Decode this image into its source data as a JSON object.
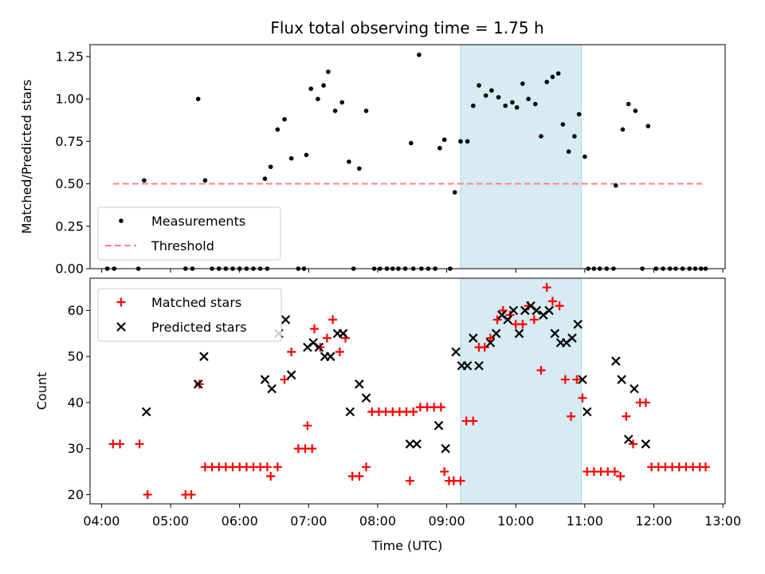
{
  "figure": {
    "title": "Flux total observing time = 1.75 h",
    "xlabel": "Time (UTC)"
  },
  "colors": {
    "measurement": "#000000",
    "threshold": "#ff8080",
    "highlight_fill": "#add8e6",
    "matched": "#ff0000",
    "predicted": "#000000"
  },
  "chart_data": [
    {
      "type": "scatter",
      "ylabel": "Matched/Predicted stars",
      "xlim": [
        "03:50",
        "13:02"
      ],
      "ylim": [
        0,
        1.32
      ],
      "yticks": [
        0,
        0.25,
        0.5,
        0.75,
        1.0,
        1.25
      ],
      "ytick_labels": [
        "0.00",
        "0.25",
        "0.50",
        "0.75",
        "1.00",
        "1.25"
      ],
      "highlight": {
        "x0": "09:12",
        "x1": "10:57"
      },
      "legend": {
        "position": "lower-left",
        "entries": [
          "Measurements",
          "Threshold"
        ]
      },
      "threshold": {
        "name": "Threshold",
        "y": 0.5,
        "x_range": [
          "04:10",
          "12:42"
        ]
      },
      "series": [
        {
          "name": "Measurements",
          "marker": "dot",
          "points": [
            [
              "04:05",
              0
            ],
            [
              "04:11",
              0
            ],
            [
              "04:32",
              0
            ],
            [
              "04:37",
              0.52
            ],
            [
              "05:13",
              0
            ],
            [
              "05:19",
              0
            ],
            [
              "05:24",
              1.0
            ],
            [
              "05:30",
              0.52
            ],
            [
              "05:36",
              0
            ],
            [
              "05:42",
              0
            ],
            [
              "05:48",
              0
            ],
            [
              "05:54",
              0
            ],
            [
              "06:00",
              0
            ],
            [
              "06:06",
              0
            ],
            [
              "06:12",
              0
            ],
            [
              "06:18",
              0
            ],
            [
              "06:24",
              0
            ],
            [
              "06:22",
              0.53
            ],
            [
              "06:27",
              0.6
            ],
            [
              "06:33",
              0.82
            ],
            [
              "06:39",
              0.88
            ],
            [
              "06:45",
              0.65
            ],
            [
              "06:51",
              0
            ],
            [
              "06:56",
              0
            ],
            [
              "06:58",
              0.67
            ],
            [
              "07:02",
              1.06
            ],
            [
              "07:08",
              1.0
            ],
            [
              "07:13",
              1.08
            ],
            [
              "07:17",
              1.16
            ],
            [
              "07:23",
              0.93
            ],
            [
              "07:29",
              0.98
            ],
            [
              "07:35",
              0.63
            ],
            [
              "07:39",
              0
            ],
            [
              "07:44",
              0.59
            ],
            [
              "07:50",
              0.93
            ],
            [
              "07:57",
              0
            ],
            [
              "08:02",
              0
            ],
            [
              "08:08",
              0
            ],
            [
              "08:13",
              0
            ],
            [
              "08:18",
              0
            ],
            [
              "08:24",
              0
            ],
            [
              "08:31",
              0
            ],
            [
              "08:38",
              0
            ],
            [
              "08:44",
              0
            ],
            [
              "08:50",
              0
            ],
            [
              "08:29",
              0.74
            ],
            [
              "08:36",
              1.26
            ],
            [
              "08:54",
              0.71
            ],
            [
              "08:58",
              0.76
            ],
            [
              "09:03",
              0
            ],
            [
              "09:07",
              0.45
            ],
            [
              "09:12",
              0.75
            ],
            [
              "09:18",
              0.75
            ],
            [
              "09:23",
              0.96
            ],
            [
              "09:28",
              1.08
            ],
            [
              "09:34",
              1.02
            ],
            [
              "09:39",
              1.05
            ],
            [
              "09:45",
              1.01
            ],
            [
              "09:51",
              0.96
            ],
            [
              "09:57",
              0.98
            ],
            [
              "10:01",
              0.95
            ],
            [
              "10:06",
              1.09
            ],
            [
              "10:11",
              1.0
            ],
            [
              "10:17",
              0.97
            ],
            [
              "10:22",
              0.78
            ],
            [
              "10:27",
              1.1
            ],
            [
              "10:32",
              1.13
            ],
            [
              "10:37",
              1.15
            ],
            [
              "10:41",
              0.85
            ],
            [
              "10:46",
              0.69
            ],
            [
              "10:51",
              0.78
            ],
            [
              "10:55",
              0.91
            ],
            [
              "11:00",
              0.66
            ],
            [
              "11:03",
              0
            ],
            [
              "11:08",
              0
            ],
            [
              "11:13",
              0
            ],
            [
              "11:19",
              0
            ],
            [
              "11:25",
              0
            ],
            [
              "11:27",
              0.49
            ],
            [
              "11:33",
              0.82
            ],
            [
              "11:38",
              0.97
            ],
            [
              "11:44",
              0.93
            ],
            [
              "11:50",
              0
            ],
            [
              "11:55",
              0.84
            ],
            [
              "12:02",
              0
            ],
            [
              "12:08",
              0
            ],
            [
              "12:14",
              0
            ],
            [
              "12:19",
              0
            ],
            [
              "12:25",
              0
            ],
            [
              "12:31",
              0
            ],
            [
              "12:36",
              0
            ],
            [
              "12:41",
              0
            ],
            [
              "12:45",
              0
            ]
          ]
        }
      ]
    },
    {
      "type": "scatter",
      "ylabel": "Count",
      "xlim": [
        "03:50",
        "13:02"
      ],
      "ylim": [
        18,
        67
      ],
      "yticks": [
        20,
        30,
        40,
        50,
        60
      ],
      "ytick_labels": [
        "20",
        "30",
        "40",
        "50",
        "60"
      ],
      "xticks": [
        "04:00",
        "05:00",
        "06:00",
        "07:00",
        "08:00",
        "09:00",
        "10:00",
        "11:00",
        "12:00",
        "13:00"
      ],
      "highlight": {
        "x0": "09:12",
        "x1": "10:57"
      },
      "legend": {
        "position": "upper-left",
        "entries": [
          "Matched stars",
          "Predicted stars"
        ]
      },
      "series": [
        {
          "name": "Matched stars",
          "marker": "plus",
          "points": [
            [
              "04:10",
              31
            ],
            [
              "04:16",
              31
            ],
            [
              "04:33",
              31
            ],
            [
              "04:40",
              20
            ],
            [
              "05:13",
              20
            ],
            [
              "05:18",
              20
            ],
            [
              "05:25",
              44
            ],
            [
              "05:30",
              26
            ],
            [
              "05:36",
              26
            ],
            [
              "05:42",
              26
            ],
            [
              "05:48",
              26
            ],
            [
              "05:54",
              26
            ],
            [
              "06:00",
              26
            ],
            [
              "06:06",
              26
            ],
            [
              "06:12",
              26
            ],
            [
              "06:18",
              26
            ],
            [
              "06:24",
              26
            ],
            [
              "06:27",
              24
            ],
            [
              "06:33",
              26
            ],
            [
              "06:39",
              45
            ],
            [
              "06:45",
              51
            ],
            [
              "06:51",
              30
            ],
            [
              "06:57",
              30
            ],
            [
              "06:59",
              35
            ],
            [
              "07:03",
              30
            ],
            [
              "07:05",
              56
            ],
            [
              "07:10",
              52
            ],
            [
              "07:16",
              54
            ],
            [
              "07:21",
              58
            ],
            [
              "07:27",
              51
            ],
            [
              "07:32",
              54
            ],
            [
              "07:38",
              24
            ],
            [
              "07:44",
              24
            ],
            [
              "07:50",
              26
            ],
            [
              "07:55",
              38
            ],
            [
              "08:01",
              38
            ],
            [
              "08:07",
              38
            ],
            [
              "08:13",
              38
            ],
            [
              "08:19",
              38
            ],
            [
              "08:25",
              38
            ],
            [
              "08:31",
              38
            ],
            [
              "08:28",
              23
            ],
            [
              "08:37",
              39
            ],
            [
              "08:43",
              39
            ],
            [
              "08:49",
              39
            ],
            [
              "08:55",
              39
            ],
            [
              "08:58",
              25
            ],
            [
              "09:02",
              23
            ],
            [
              "09:06",
              23
            ],
            [
              "09:12",
              23
            ],
            [
              "09:17",
              36
            ],
            [
              "09:23",
              36
            ],
            [
              "09:28",
              52
            ],
            [
              "09:33",
              52
            ],
            [
              "09:38",
              54
            ],
            [
              "09:44",
              58
            ],
            [
              "09:49",
              60
            ],
            [
              "09:55",
              59
            ],
            [
              "10:00",
              57
            ],
            [
              "10:06",
              57
            ],
            [
              "10:11",
              61
            ],
            [
              "10:16",
              58
            ],
            [
              "10:22",
              47
            ],
            [
              "10:27",
              65
            ],
            [
              "10:32",
              62
            ],
            [
              "10:38",
              61
            ],
            [
              "10:43",
              45
            ],
            [
              "10:48",
              37
            ],
            [
              "10:53",
              45
            ],
            [
              "10:58",
              41
            ],
            [
              "11:02",
              25
            ],
            [
              "11:08",
              25
            ],
            [
              "11:14",
              25
            ],
            [
              "11:20",
              25
            ],
            [
              "11:26",
              25
            ],
            [
              "11:31",
              24
            ],
            [
              "11:36",
              37
            ],
            [
              "11:42",
              31
            ],
            [
              "11:48",
              40
            ],
            [
              "11:53",
              40
            ],
            [
              "11:58",
              26
            ],
            [
              "12:04",
              26
            ],
            [
              "12:10",
              26
            ],
            [
              "12:16",
              26
            ],
            [
              "12:22",
              26
            ],
            [
              "12:28",
              26
            ],
            [
              "12:34",
              26
            ],
            [
              "12:40",
              26
            ],
            [
              "12:45",
              26
            ]
          ]
        },
        {
          "name": "Predicted stars",
          "marker": "x",
          "points": [
            [
              "04:39",
              38
            ],
            [
              "05:24",
              44
            ],
            [
              "05:29",
              50
            ],
            [
              "06:22",
              45
            ],
            [
              "06:28",
              43
            ],
            [
              "06:34",
              55
            ],
            [
              "06:40",
              58
            ],
            [
              "06:45",
              46
            ],
            [
              "06:59",
              52
            ],
            [
              "07:04",
              53
            ],
            [
              "07:09",
              52
            ],
            [
              "07:14",
              50
            ],
            [
              "07:19",
              50
            ],
            [
              "07:25",
              55
            ],
            [
              "07:30",
              55
            ],
            [
              "07:36",
              38
            ],
            [
              "07:44",
              44
            ],
            [
              "07:50",
              41
            ],
            [
              "08:28",
              31
            ],
            [
              "08:34",
              31
            ],
            [
              "08:53",
              35
            ],
            [
              "08:59",
              30
            ],
            [
              "09:08",
              51
            ],
            [
              "09:13",
              48
            ],
            [
              "09:18",
              48
            ],
            [
              "09:23",
              54
            ],
            [
              "09:28",
              48
            ],
            [
              "09:38",
              53
            ],
            [
              "09:43",
              55
            ],
            [
              "09:48",
              59
            ],
            [
              "09:53",
              58
            ],
            [
              "09:58",
              60
            ],
            [
              "10:03",
              55
            ],
            [
              "10:08",
              60
            ],
            [
              "10:13",
              61
            ],
            [
              "10:18",
              60
            ],
            [
              "10:24",
              59
            ],
            [
              "10:29",
              60
            ],
            [
              "10:34",
              55
            ],
            [
              "10:39",
              53
            ],
            [
              "10:44",
              53
            ],
            [
              "10:49",
              54
            ],
            [
              "10:54",
              57
            ],
            [
              "10:58",
              45
            ],
            [
              "11:02",
              38
            ],
            [
              "11:27",
              49
            ],
            [
              "11:32",
              45
            ],
            [
              "11:38",
              32
            ],
            [
              "11:43",
              43
            ],
            [
              "11:53",
              31
            ]
          ]
        }
      ]
    }
  ]
}
